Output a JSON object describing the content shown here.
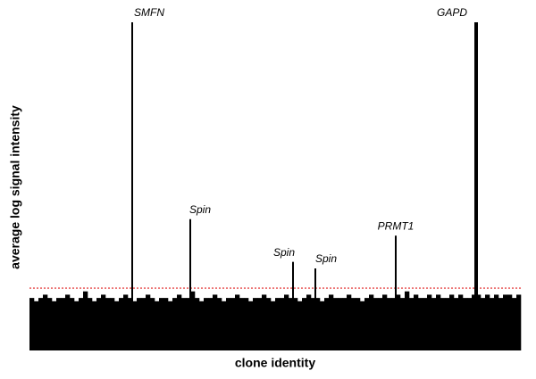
{
  "chart_data": {
    "type": "spike",
    "xlabel": "clone identity",
    "ylabel": "average log signal intensity",
    "xlim": [
      0,
      110
    ],
    "ylim": [
      0,
      100
    ],
    "color": "#000000",
    "threshold": 19,
    "threshold_color": "#e02020",
    "background": {
      "x": [
        0,
        1,
        2,
        3,
        4,
        5,
        6,
        7,
        8,
        9,
        10,
        11,
        12,
        13,
        14,
        15,
        16,
        17,
        18,
        19,
        20,
        21,
        22,
        23,
        24,
        25,
        26,
        27,
        28,
        29,
        30,
        31,
        32,
        33,
        34,
        35,
        36,
        37,
        38,
        39,
        40,
        41,
        42,
        43,
        44,
        45,
        46,
        47,
        48,
        49,
        50,
        51,
        52,
        53,
        54,
        55,
        56,
        57,
        58,
        59,
        60,
        61,
        62,
        63,
        64,
        65,
        66,
        67,
        68,
        69,
        70,
        71,
        72,
        73,
        74,
        75,
        76,
        77,
        78,
        79,
        80,
        81,
        82,
        83,
        84,
        85,
        86,
        87,
        88,
        89,
        90,
        91,
        92,
        93,
        94,
        95,
        96,
        97,
        98,
        99,
        100,
        101,
        102,
        103,
        104,
        105,
        106,
        107,
        108,
        109
      ],
      "values": [
        16,
        15,
        16,
        17,
        16,
        15,
        16,
        16,
        17,
        16,
        15,
        16,
        18,
        16,
        15,
        16,
        17,
        16,
        16,
        15,
        16,
        17,
        16,
        15,
        16,
        16,
        17,
        16,
        15,
        16,
        16,
        15,
        16,
        17,
        16,
        16,
        18,
        16,
        15,
        16,
        16,
        17,
        16,
        15,
        16,
        16,
        17,
        16,
        16,
        15,
        16,
        16,
        17,
        16,
        15,
        16,
        16,
        17,
        16,
        16,
        15,
        16,
        17,
        16,
        16,
        15,
        16,
        17,
        16,
        16,
        16,
        17,
        16,
        16,
        15,
        16,
        17,
        16,
        16,
        17,
        16,
        16,
        17,
        16,
        18,
        16,
        17,
        16,
        16,
        17,
        16,
        17,
        16,
        16,
        17,
        16,
        17,
        16,
        16,
        17,
        17,
        16,
        17,
        16,
        17,
        16,
        17,
        17,
        16,
        17
      ]
    },
    "peaks": {
      "x": [
        23,
        36,
        59,
        64,
        82,
        100
      ],
      "values": [
        100,
        40,
        27,
        25,
        35,
        100
      ],
      "labels": [
        "SMFN",
        "Spin",
        "Spin",
        "Spin",
        "PRMT1",
        "GAPD"
      ]
    }
  }
}
